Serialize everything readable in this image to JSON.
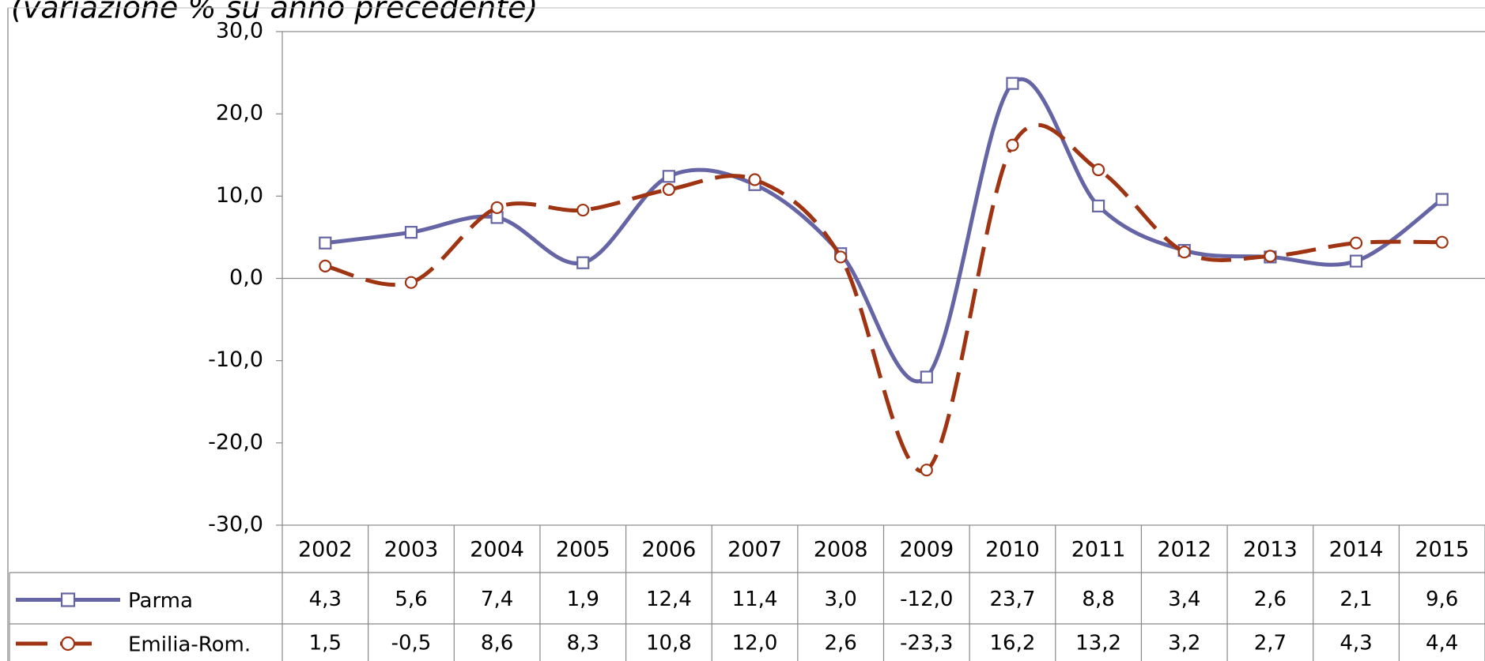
{
  "chart_data": {
    "type": "line",
    "subtitle": "(variazione % su anno precedente)",
    "categories": [
      "2002",
      "2003",
      "2004",
      "2005",
      "2006",
      "2007",
      "2008",
      "2009",
      "2010",
      "2011",
      "2012",
      "2013",
      "2014",
      "2015"
    ],
    "series": [
      {
        "name": "Parma",
        "color": "#6565a5",
        "marker": "square",
        "dashed": false,
        "values": [
          4.3,
          5.6,
          7.4,
          1.9,
          12.4,
          11.4,
          3.0,
          -12.0,
          23.7,
          8.8,
          3.4,
          2.6,
          2.1,
          9.6
        ],
        "value_labels": [
          "4,3",
          "5,6",
          "7,4",
          "1,9",
          "12,4",
          "11,4",
          "3,0",
          "-12,0",
          "23,7",
          "8,8",
          "3,4",
          "2,6",
          "2,1",
          "9,6"
        ]
      },
      {
        "name": "Emilia-Rom.",
        "color": "#9e3412",
        "marker": "circle",
        "dashed": true,
        "values": [
          1.5,
          -0.5,
          8.6,
          8.3,
          10.8,
          12.0,
          2.6,
          -23.3,
          16.2,
          13.2,
          3.2,
          2.7,
          4.3,
          4.4
        ],
        "value_labels": [
          "1,5",
          "-0,5",
          "8,6",
          "8,3",
          "10,8",
          "12,0",
          "2,6",
          "-23,3",
          "16,2",
          "13,2",
          "3,2",
          "2,7",
          "4,3",
          "4,4"
        ]
      }
    ],
    "ylim": [
      -30,
      30
    ],
    "yticks": [
      {
        "value": -30,
        "label": "-30,0"
      },
      {
        "value": -20,
        "label": "-20,0"
      },
      {
        "value": -10,
        "label": "-10,0"
      },
      {
        "value": 0,
        "label": "0,0"
      },
      {
        "value": 10,
        "label": "10,0"
      },
      {
        "value": 20,
        "label": "20,0"
      },
      {
        "value": 30,
        "label": "30,0"
      }
    ],
    "grid": false
  }
}
